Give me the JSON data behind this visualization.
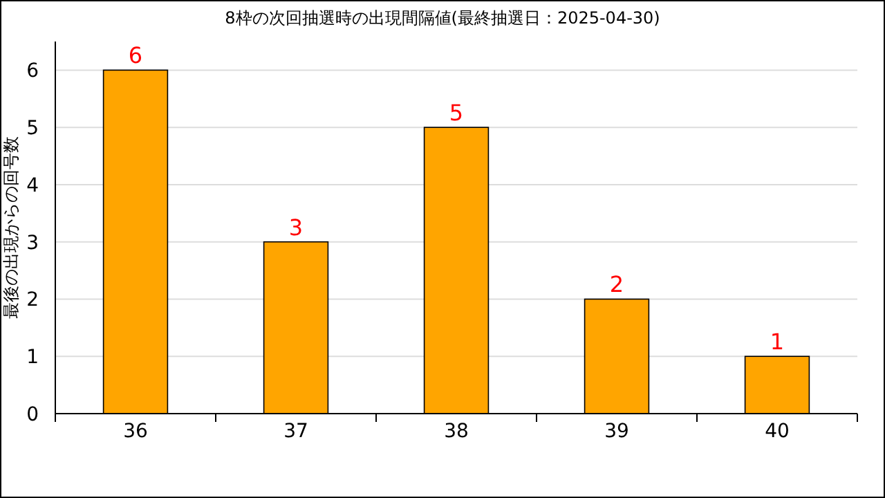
{
  "chart_data": {
    "type": "bar",
    "title": "8枠の次回抽選時の出現間隔値(最終抽選日：2025-04-30)",
    "ylabel": "最後の出現からの回号数",
    "categories": [
      "36",
      "37",
      "38",
      "39",
      "40"
    ],
    "values": [
      6,
      3,
      5,
      2,
      1
    ],
    "color": "#ffa500",
    "ylim": [
      0,
      6.5
    ],
    "yticks": [
      0,
      1,
      2,
      3,
      4,
      5,
      6
    ],
    "grid": "y",
    "data_labels": true
  }
}
